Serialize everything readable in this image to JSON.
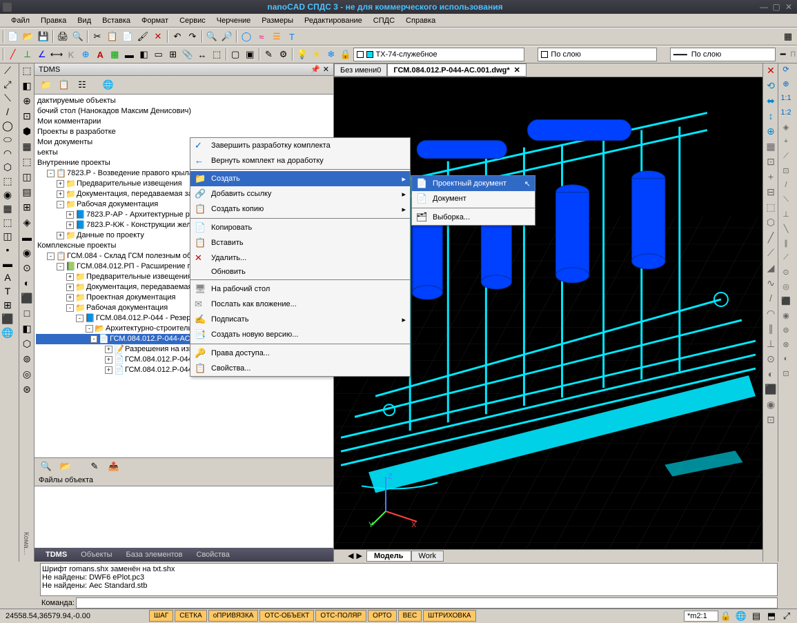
{
  "window_title": "nanoCAD СПДС 3 - не для коммерческого использования",
  "menubar": [
    "Файл",
    "Правка",
    "Вид",
    "Вставка",
    "Формат",
    "Сервис",
    "Черчение",
    "Размеры",
    "Редактирование",
    "СПДС",
    "Справка"
  ],
  "layer_combo": "ТХ-74-служебное",
  "bylayer1": "По слою",
  "bylayer2": "По слою",
  "tdms_title": "TDMS",
  "tree_rows": [
    {
      "indent": 0,
      "toggle": "",
      "ico": "",
      "text": "дактируемые объекты",
      "sel": false
    },
    {
      "indent": 0,
      "toggle": "",
      "ico": "",
      "text": "бочий стол (Нанокадов Максим Денисович)",
      "sel": false
    },
    {
      "indent": 0,
      "toggle": "",
      "ico": "",
      "text": "Мои комментарии",
      "sel": false
    },
    {
      "indent": 0,
      "toggle": "",
      "ico": "",
      "text": "Проекты в разработке",
      "sel": false
    },
    {
      "indent": 0,
      "toggle": "",
      "ico": "",
      "text": "Мои документы",
      "sel": false
    },
    {
      "indent": 0,
      "toggle": "",
      "ico": "",
      "text": "ьекты",
      "sel": false
    },
    {
      "indent": 0,
      "toggle": "",
      "ico": "",
      "text": "Внутренние проекты",
      "sel": false
    },
    {
      "indent": 1,
      "toggle": "-",
      "ico": "📋",
      "text": "7823.Р - Возведение правого крыла церкв",
      "sel": false
    },
    {
      "indent": 2,
      "toggle": "+",
      "ico": "📁",
      "text": "Предварительные извещения",
      "sel": false
    },
    {
      "indent": 2,
      "toggle": "+",
      "ico": "📁",
      "text": "Документация, передаваемая заказч",
      "sel": false
    },
    {
      "indent": 2,
      "toggle": "-",
      "ico": "📁",
      "text": "Рабочая документация",
      "sel": false
    },
    {
      "indent": 3,
      "toggle": "+",
      "ico": "📘",
      "text": "7823.Р-АР - Архитектурные решен",
      "sel": false
    },
    {
      "indent": 3,
      "toggle": "+",
      "ico": "📘",
      "text": "7823.Р-КЖ - Конструкции желез",
      "sel": false
    },
    {
      "indent": 2,
      "toggle": "+",
      "ico": "📁",
      "text": "Данные по проекту",
      "sel": false
    },
    {
      "indent": 0,
      "toggle": "",
      "ico": "",
      "text": "Комплексные проекты",
      "sel": false
    },
    {
      "indent": 1,
      "toggle": "-",
      "ico": "📋",
      "text": "ГСМ.084 - Склад ГСМ полезным объемом 1",
      "sel": false
    },
    {
      "indent": 2,
      "toggle": "-",
      "ico": "📗",
      "text": "ГСМ.084.012.РП - Расширение пропус",
      "sel": false
    },
    {
      "indent": 3,
      "toggle": "+",
      "ico": "📁",
      "text": "Предварительные извещения",
      "sel": false
    },
    {
      "indent": 3,
      "toggle": "+",
      "ico": "📁",
      "text": "Документация, передаваемая зак",
      "sel": false
    },
    {
      "indent": 3,
      "toggle": "+",
      "ico": "📁",
      "text": "Проектная документация",
      "sel": false
    },
    {
      "indent": 3,
      "toggle": "-",
      "ico": "📁",
      "text": "Рабочая документация",
      "sel": false
    },
    {
      "indent": 4,
      "toggle": "-",
      "ico": "📘",
      "text": "ГСМ.084.012.Р-044 - Резервуар",
      "sel": false
    },
    {
      "indent": 5,
      "toggle": "-",
      "ico": "📂",
      "text": "Архитектурно-строительн",
      "sel": false
    },
    {
      "indent": 6,
      "toggle": "-",
      "ico": "📄",
      "text": "ГСМ.084.012.Р-044-АС - Архитектурно-строительные решения",
      "sel": true
    },
    {
      "indent": 7,
      "toggle": "+",
      "ico": "📝",
      "text": "Разрешения на изменение",
      "sel": false
    },
    {
      "indent": 7,
      "toggle": "+",
      "ico": "📄",
      "text": "ГСМ.084.012.Р-044-АС.001 - Общие данные",
      "sel": false
    },
    {
      "indent": 7,
      "toggle": "+",
      "ico": "📄",
      "text": "ГСМ.084.012.Р-044-АС.002 - Узел 1. Опоры ОП2, ОП2а",
      "sel": false
    }
  ],
  "files_label": "Файлы объекта",
  "bottom_tabs": [
    "TDMS",
    "Объекты",
    "База элементов",
    "Свойства"
  ],
  "active_bottom_tab": 0,
  "doc_tabs": [
    {
      "label": "Без имени0",
      "active": false
    },
    {
      "label": "ГСМ.084.012.Р-044-АС.001.dwg*",
      "active": true
    }
  ],
  "view_tabs": [
    "Модель",
    "Work"
  ],
  "active_view_tab": 0,
  "cmdline_lines": [
    "Шрифт romans.shx заменён на txt.shx",
    "Не найдены: DWF6 ePlot.pc3",
    "Не найдены: Aec Standard.stb"
  ],
  "cmd_prompt": "Команда:",
  "coords": "24558.54,36579.94,-0.00",
  "status_buttons": [
    "ШАГ",
    "СЕТКА",
    "оПРИВЯЗКА",
    "ОТС-ОБЪЕКТ",
    "ОТС-ПОЛЯР",
    "ОРТО",
    "ВЕС",
    "ШТРИХОВКА"
  ],
  "status_zoom": "*m2:1",
  "side_label": "Кома…",
  "ctx_menu": [
    {
      "ico": "✓",
      "label": "Завершить разработку комплекта",
      "arrow": false,
      "hl": false,
      "col": "#0066cc"
    },
    {
      "ico": "←",
      "label": "Вернуть комплект на доработку",
      "arrow": false,
      "hl": false,
      "col": "#0066cc"
    },
    {
      "sep": true
    },
    {
      "ico": "📁",
      "label": "Создать",
      "arrow": true,
      "hl": true,
      "col": "#d4a000"
    },
    {
      "ico": "🔗",
      "label": "Добавить ссылку",
      "arrow": true,
      "hl": false,
      "col": "#888"
    },
    {
      "ico": "📋",
      "label": "Создать копию",
      "arrow": true,
      "hl": false,
      "col": "#888"
    },
    {
      "sep": true
    },
    {
      "ico": "📄",
      "label": "Копировать",
      "arrow": false,
      "hl": false,
      "col": "#888"
    },
    {
      "ico": "📋",
      "label": "Вставить",
      "arrow": false,
      "hl": false,
      "col": "#888"
    },
    {
      "ico": "✕",
      "label": "Удалить...",
      "arrow": false,
      "hl": false,
      "col": "#cc0000"
    },
    {
      "ico": "",
      "label": "Обновить",
      "arrow": false,
      "hl": false,
      "col": "#888"
    },
    {
      "sep": true
    },
    {
      "ico": "🖥",
      "label": "На рабочий стол",
      "arrow": false,
      "hl": false,
      "col": "#888"
    },
    {
      "ico": "✉",
      "label": "Послать как вложение...",
      "arrow": false,
      "hl": false,
      "col": "#888"
    },
    {
      "ico": "✍",
      "label": "Подписать",
      "arrow": true,
      "hl": false,
      "col": "#888"
    },
    {
      "ico": "📑",
      "label": "Создать новую версию...",
      "arrow": false,
      "hl": false,
      "col": "#888"
    },
    {
      "sep": true
    },
    {
      "ico": "🔑",
      "label": "Права доступа...",
      "arrow": false,
      "hl": false,
      "col": "#d4a000"
    },
    {
      "ico": "📋",
      "label": "Свойства...",
      "arrow": false,
      "hl": false,
      "col": "#888"
    }
  ],
  "submenu_items": [
    {
      "ico": "📄",
      "label": "Проектный документ",
      "hl": true
    },
    {
      "ico": "📄",
      "label": "Документ",
      "hl": false
    },
    {
      "sep": true
    },
    {
      "ico": "🗂",
      "label": "Выборка...",
      "hl": false
    }
  ],
  "colors": {
    "cyan": "#00e8ff",
    "blue": "#0040ff",
    "grid": "#2a2a2a",
    "axis_x": "#ff4040",
    "axis_y": "#40ff40",
    "axis_z": "#4080ff"
  }
}
